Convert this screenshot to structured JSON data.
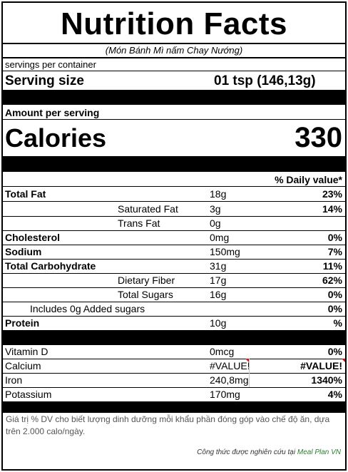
{
  "title": "Nutrition Facts",
  "subtitle": "(Món Bánh Mì nấm Chay Nướng)",
  "servings_per_container": "servings per container",
  "serving_size": {
    "label": "Serving size",
    "value": "01 tsp  (146,13g)"
  },
  "amount_per_serving": "Amount per serving",
  "calories": {
    "label": "Calories",
    "value": "330"
  },
  "daily_value_header": "% Daily value*",
  "nutrients": [
    {
      "name": "Total Fat",
      "amount": "18g",
      "dv": "23%"
    },
    {
      "name": "Saturated Fat",
      "amount": "3g",
      "dv": "14%"
    },
    {
      "name": "Trans Fat",
      "amount": "0g",
      "dv": ""
    },
    {
      "name": "Cholesterol",
      "amount": "0mg",
      "dv": "0%"
    },
    {
      "name": "Sodium",
      "amount": "150mg",
      "dv": "7%"
    },
    {
      "name": "Total Carbohydrate",
      "amount": "31g",
      "dv": "11%"
    },
    {
      "name": "Dietary Fiber",
      "amount": "17g",
      "dv": "62%"
    },
    {
      "name": "Total Sugars",
      "amount": "16g",
      "dv": "0%"
    },
    {
      "name": "Includes 0g Added sugars",
      "amount": "",
      "dv": "0%"
    },
    {
      "name": "Protein",
      "amount": "10g",
      "dv": "%"
    }
  ],
  "vitamins": [
    {
      "name": "Vitamin D",
      "amount": "0mcg",
      "dv": "0%"
    },
    {
      "name": "Calcium",
      "amount": "#VALUE!",
      "dv": "#VALUE!"
    },
    {
      "name": "Iron",
      "amount": "240,8mg",
      "dv": "1340%"
    },
    {
      "name": "Potassium",
      "amount": "170mg",
      "dv": "4%"
    }
  ],
  "footnote": "Giá trị % DV cho biết lượng dinh dưỡng mỗi khẩu phần đóng góp vào chế độ ăn, dựa trên 2.000 calo/ngày.",
  "credit": {
    "text": "Công thức được nghiên cứu tại ",
    "brand": "Meal Plan VN"
  },
  "colors": {
    "brand": "#2e7d32",
    "error_marker": "#d01010"
  }
}
